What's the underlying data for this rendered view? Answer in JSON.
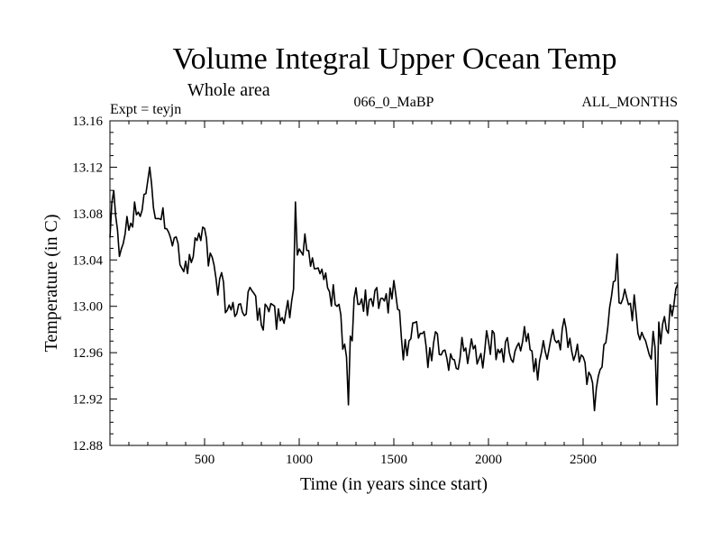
{
  "chart_data": {
    "type": "line",
    "title": "Volume Integral Upper Ocean Temp",
    "subtitle": "Whole area",
    "annotations": {
      "experiment": "Expt = teyjn",
      "run": "066_0_MaBP",
      "months": "ALL_MONTHS"
    },
    "xlabel": "Time (in years since start)",
    "ylabel": "Temperature (in C)",
    "xlim": [
      0,
      3000
    ],
    "ylim": [
      12.88,
      13.16
    ],
    "x_ticks_major": [
      500,
      1000,
      1500,
      2000,
      2500
    ],
    "x_ticks_minor_step": 100,
    "y_ticks_major": [
      "12.88",
      "12.92",
      "12.96",
      "13.00",
      "13.04",
      "13.08",
      "13.12",
      "13.16"
    ],
    "y_ticks_minor_step": 0.01,
    "grid": false,
    "series": [
      {
        "name": "Volume integral upper ocean temperature",
        "color": "#000000",
        "sample_step_years": 10,
        "anchors": [
          [
            0,
            13.06
          ],
          [
            20,
            13.09
          ],
          [
            50,
            13.04
          ],
          [
            100,
            13.07
          ],
          [
            150,
            13.08
          ],
          [
            210,
            13.1
          ],
          [
            250,
            13.07
          ],
          [
            300,
            13.08
          ],
          [
            350,
            13.05
          ],
          [
            400,
            13.03
          ],
          [
            450,
            13.05
          ],
          [
            500,
            13.06
          ],
          [
            550,
            13.04
          ],
          [
            600,
            13.01
          ],
          [
            650,
            12.99
          ],
          [
            700,
            13.0
          ],
          [
            750,
            13.01
          ],
          [
            800,
            13.0
          ],
          [
            850,
            13.0
          ],
          [
            900,
            12.99
          ],
          [
            950,
            13.0
          ],
          [
            1000,
            13.05
          ],
          [
            1050,
            13.04
          ],
          [
            1100,
            13.03
          ],
          [
            1150,
            13.01
          ],
          [
            1200,
            13.0
          ],
          [
            1250,
            12.96
          ],
          [
            1280,
            12.97
          ],
          [
            1300,
            13.01
          ],
          [
            1400,
            13.01
          ],
          [
            1450,
            13.0
          ],
          [
            1500,
            13.01
          ],
          [
            1550,
            12.97
          ],
          [
            1600,
            12.97
          ],
          [
            1700,
            12.96
          ],
          [
            1800,
            12.96
          ],
          [
            1900,
            12.97
          ],
          [
            2000,
            12.97
          ],
          [
            2100,
            12.96
          ],
          [
            2200,
            12.96
          ],
          [
            2300,
            12.96
          ],
          [
            2400,
            12.97
          ],
          [
            2500,
            12.96
          ],
          [
            2550,
            12.93
          ],
          [
            2600,
            12.95
          ],
          [
            2650,
            13.01
          ],
          [
            2700,
            13.01
          ],
          [
            2800,
            12.98
          ],
          [
            2850,
            12.96
          ],
          [
            2900,
            12.98
          ],
          [
            2950,
            12.98
          ],
          [
            3000,
            13.0
          ]
        ],
        "spikes": [
          [
            1260,
            12.915
          ],
          [
            2560,
            12.91
          ],
          [
            2890,
            12.915
          ],
          [
            210,
            13.12
          ],
          [
            980,
            13.09
          ],
          [
            2680,
            13.045
          ]
        ]
      }
    ]
  }
}
